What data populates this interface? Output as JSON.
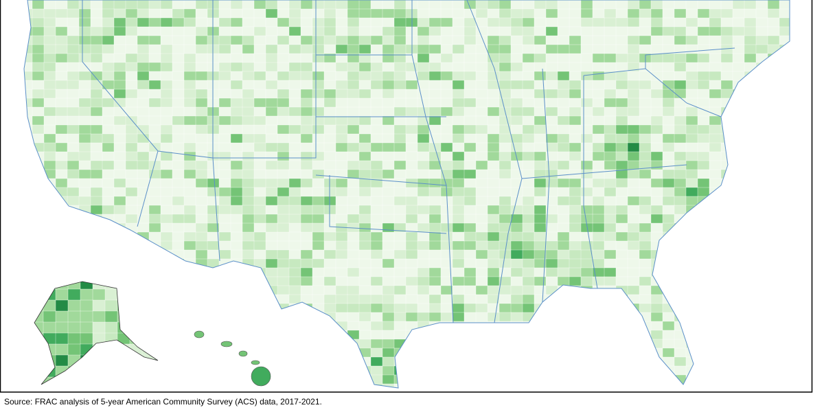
{
  "source": "Source: FRAC analysis of 5-year American Community Survey (ACS) data, 2017-2021."
}
